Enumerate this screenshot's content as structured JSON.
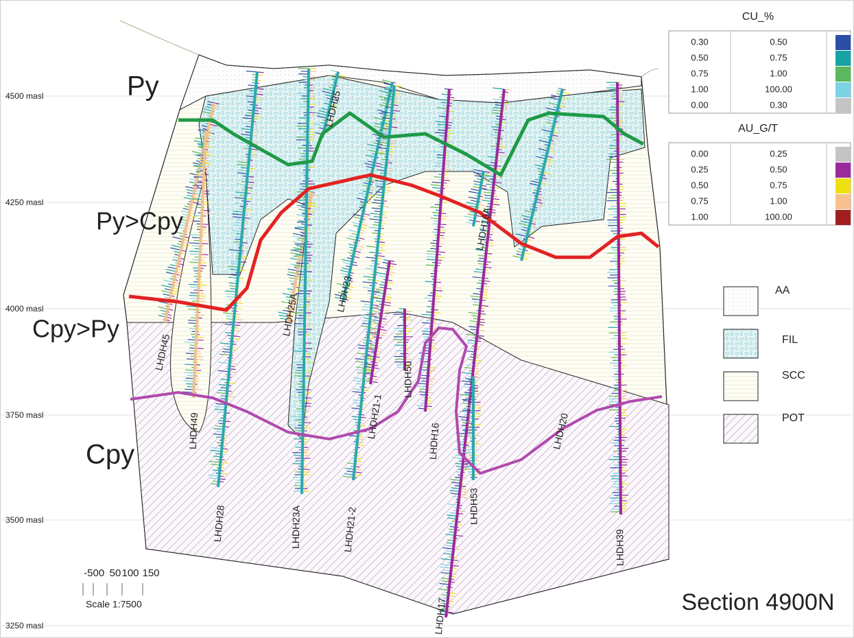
{
  "elevation_labels": [
    "4500 masl",
    "4250 masl",
    "4000 masl",
    "3750 masl",
    "3500 masl",
    "3250 masl"
  ],
  "zones": [
    "Py",
    "Py>Cpy",
    "Cpy>Py",
    "Cpy"
  ],
  "drill_holes": [
    "LHDH45",
    "LHDH49",
    "LHDH28",
    "LHDH25A",
    "LHDH23A",
    "LHDH25",
    "LHDH23",
    "LHDH21-2",
    "LHDH21-1",
    "LHDH50",
    "LHDH16",
    "LHDH17",
    "LHDH16A",
    "LHDH53",
    "LHDH20",
    "LHDH39"
  ],
  "cu_legend": {
    "title": "CU_%",
    "rows": [
      [
        "0.30",
        "0.50"
      ],
      [
        "0.50",
        "0.75"
      ],
      [
        "0.75",
        "1.00"
      ],
      [
        "1.00",
        "100.00"
      ],
      [
        "0.00",
        "0.30"
      ]
    ],
    "colors": [
      "#2b4ea6",
      "#17a3a5",
      "#5cb85c",
      "#7dd2e4",
      "#c4c4c4"
    ]
  },
  "au_legend": {
    "title": "AU_G/T",
    "rows": [
      [
        "0.00",
        "0.25"
      ],
      [
        "0.25",
        "0.50"
      ],
      [
        "0.50",
        "0.75"
      ],
      [
        "0.75",
        "1.00"
      ],
      [
        "1.00",
        "100.00"
      ]
    ],
    "colors": [
      "#c4c4c4",
      "#9a2a9c",
      "#efe012",
      "#f6c18c",
      "#a11f1f"
    ]
  },
  "lithology_legend": [
    "AA",
    "FIL",
    "SCC",
    "POT"
  ],
  "scale": {
    "ticks": [
      "-50",
      "0",
      "50",
      "100",
      "150"
    ],
    "label": "Scale 1:7500"
  },
  "section_title": "Section 4900N"
}
